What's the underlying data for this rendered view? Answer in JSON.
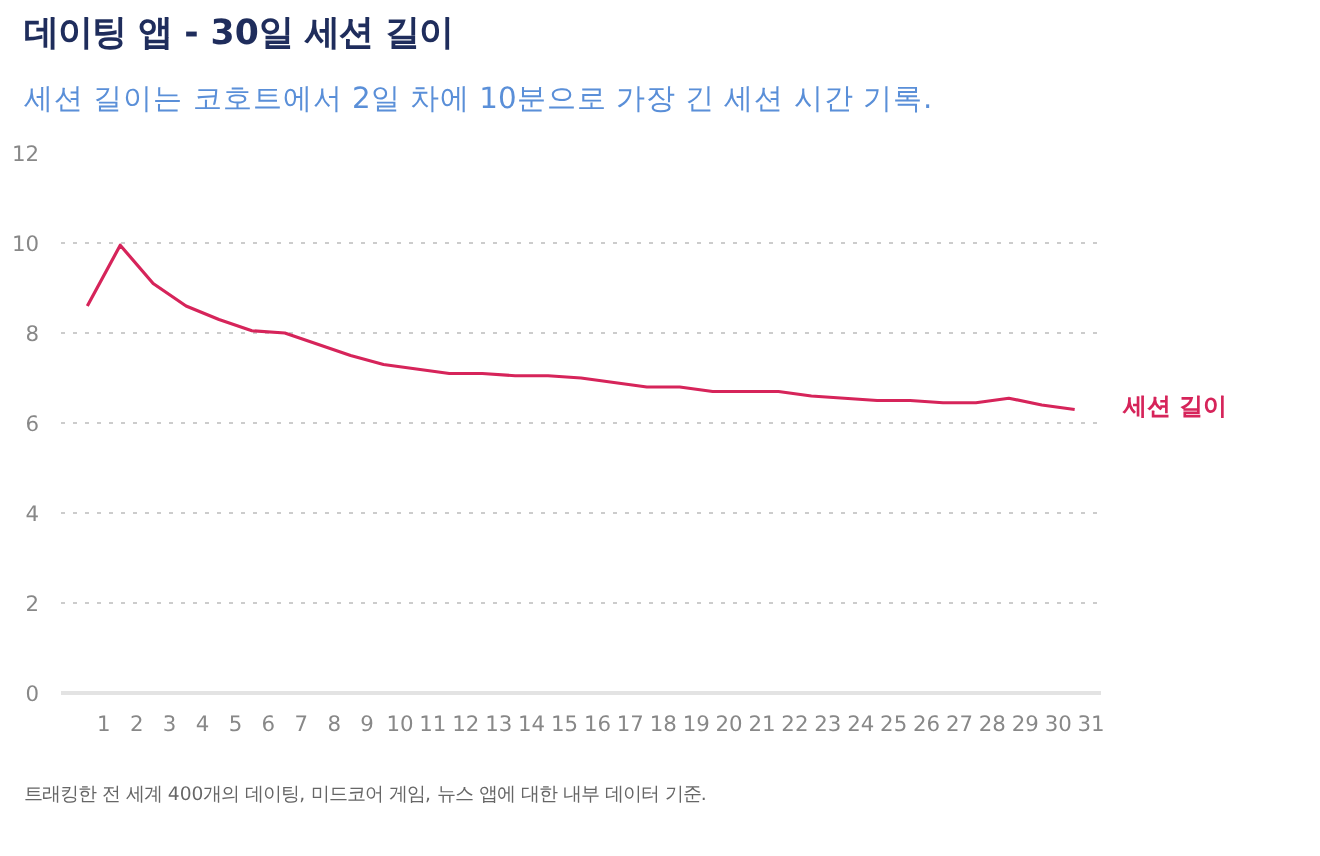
{
  "chart_data": {
    "type": "line",
    "title": "데이팅 앱 - 30일 세션 길이",
    "subtitle": "세션 길이는 코호트에서 2일 차에 10분으로 가장 긴 세션 시간 기록.",
    "x": [
      0.5,
      1.5,
      2.5,
      3.5,
      4.5,
      5.5,
      6.5,
      7.5,
      8.5,
      9.5,
      10.5,
      11.5,
      12.5,
      13.5,
      14.5,
      15.5,
      16.5,
      17.5,
      18.5,
      19.5,
      20.5,
      21.5,
      22.5,
      23.5,
      24.5,
      25.5,
      26.5,
      27.5,
      28.5,
      29.5,
      30.5
    ],
    "series": [
      {
        "name": "세션 길이",
        "color": "#d6245a",
        "values": [
          8.6,
          9.95,
          9.1,
          8.6,
          8.3,
          8.05,
          8.0,
          7.75,
          7.5,
          7.3,
          7.2,
          7.1,
          7.1,
          7.05,
          7.05,
          7.0,
          6.9,
          6.8,
          6.8,
          6.7,
          6.7,
          6.7,
          6.6,
          6.55,
          6.5,
          6.5,
          6.45,
          6.45,
          6.55,
          6.4,
          6.3
        ]
      }
    ],
    "xlim": [
      -0.3,
      31.3
    ],
    "xticks": [
      1,
      2,
      3,
      4,
      5,
      6,
      7,
      8,
      9,
      10,
      11,
      12,
      13,
      14,
      15,
      16,
      17,
      18,
      19,
      20,
      21,
      22,
      23,
      24,
      25,
      26,
      27,
      28,
      29,
      30,
      31
    ],
    "ylim": [
      0,
      12
    ],
    "yticks": [
      0,
      2,
      4,
      6,
      8,
      10,
      12
    ],
    "grid": "y",
    "marker": "none",
    "line_style": "solid",
    "annotations": [
      "트래킹한 전 세계 400개의 데이팅, 미드코어 게임, 뉴스 앱에 대한 내부 데이터 기준."
    ]
  }
}
